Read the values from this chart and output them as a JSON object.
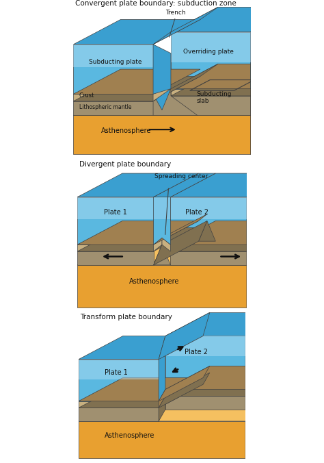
{
  "title1": "Convergent plate boundary: subduction zone",
  "title2": "Divergent plate boundary",
  "title3": "Transform plate boundary",
  "bg_color": "#ffffff",
  "ocean_top": "#8ecfec",
  "ocean_mid": "#5ab8e0",
  "ocean_deep": "#3a9fd0",
  "ocean_light": "#b8e0f5",
  "crust_col": "#c8b080",
  "mantle_col": "#a09070",
  "mantle_dark": "#807050",
  "astheno_col": "#e8a030",
  "astheno_light": "#f5c060",
  "astheno_dark": "#c07820",
  "outline": "#404040",
  "text_col": "#111111",
  "arrow_col": "#111111",
  "side_astheno": "#c88020",
  "side_ocean": "#2a80b0",
  "side_mantle": "#706050",
  "side_crust": "#a08050"
}
